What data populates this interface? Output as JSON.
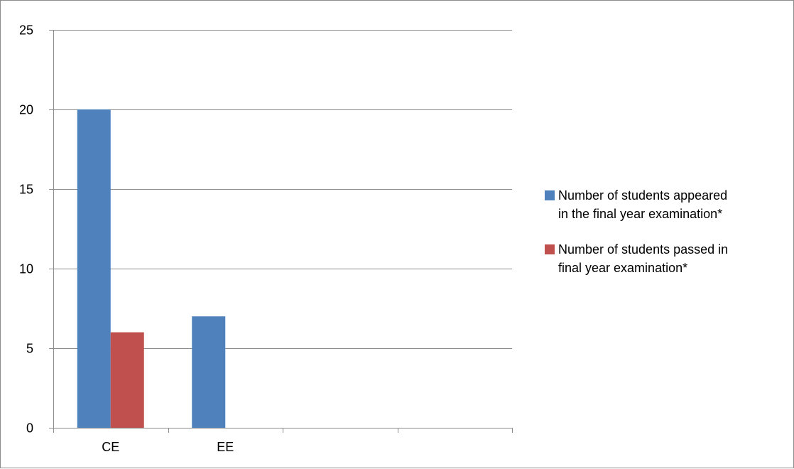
{
  "chart_data": {
    "type": "bar",
    "categories": [
      "CE",
      "EE",
      "",
      ""
    ],
    "series": [
      {
        "name": "Number of students appeared in the final year examination*",
        "values": [
          20,
          7,
          null,
          null
        ],
        "color": "#4f81bd"
      },
      {
        "name": "Number of students passed in final year examination*",
        "values": [
          6,
          0,
          null,
          null
        ],
        "color": "#c0504d"
      }
    ],
    "ylim": [
      0,
      25
    ],
    "yticks": [
      0,
      5,
      10,
      15,
      20,
      25
    ],
    "grid": true,
    "legend": "right",
    "legend_lines": [
      [
        "Number of students appeared",
        "in the final year examination*"
      ],
      [
        "Number of students passed in",
        "final year examination*"
      ]
    ]
  }
}
